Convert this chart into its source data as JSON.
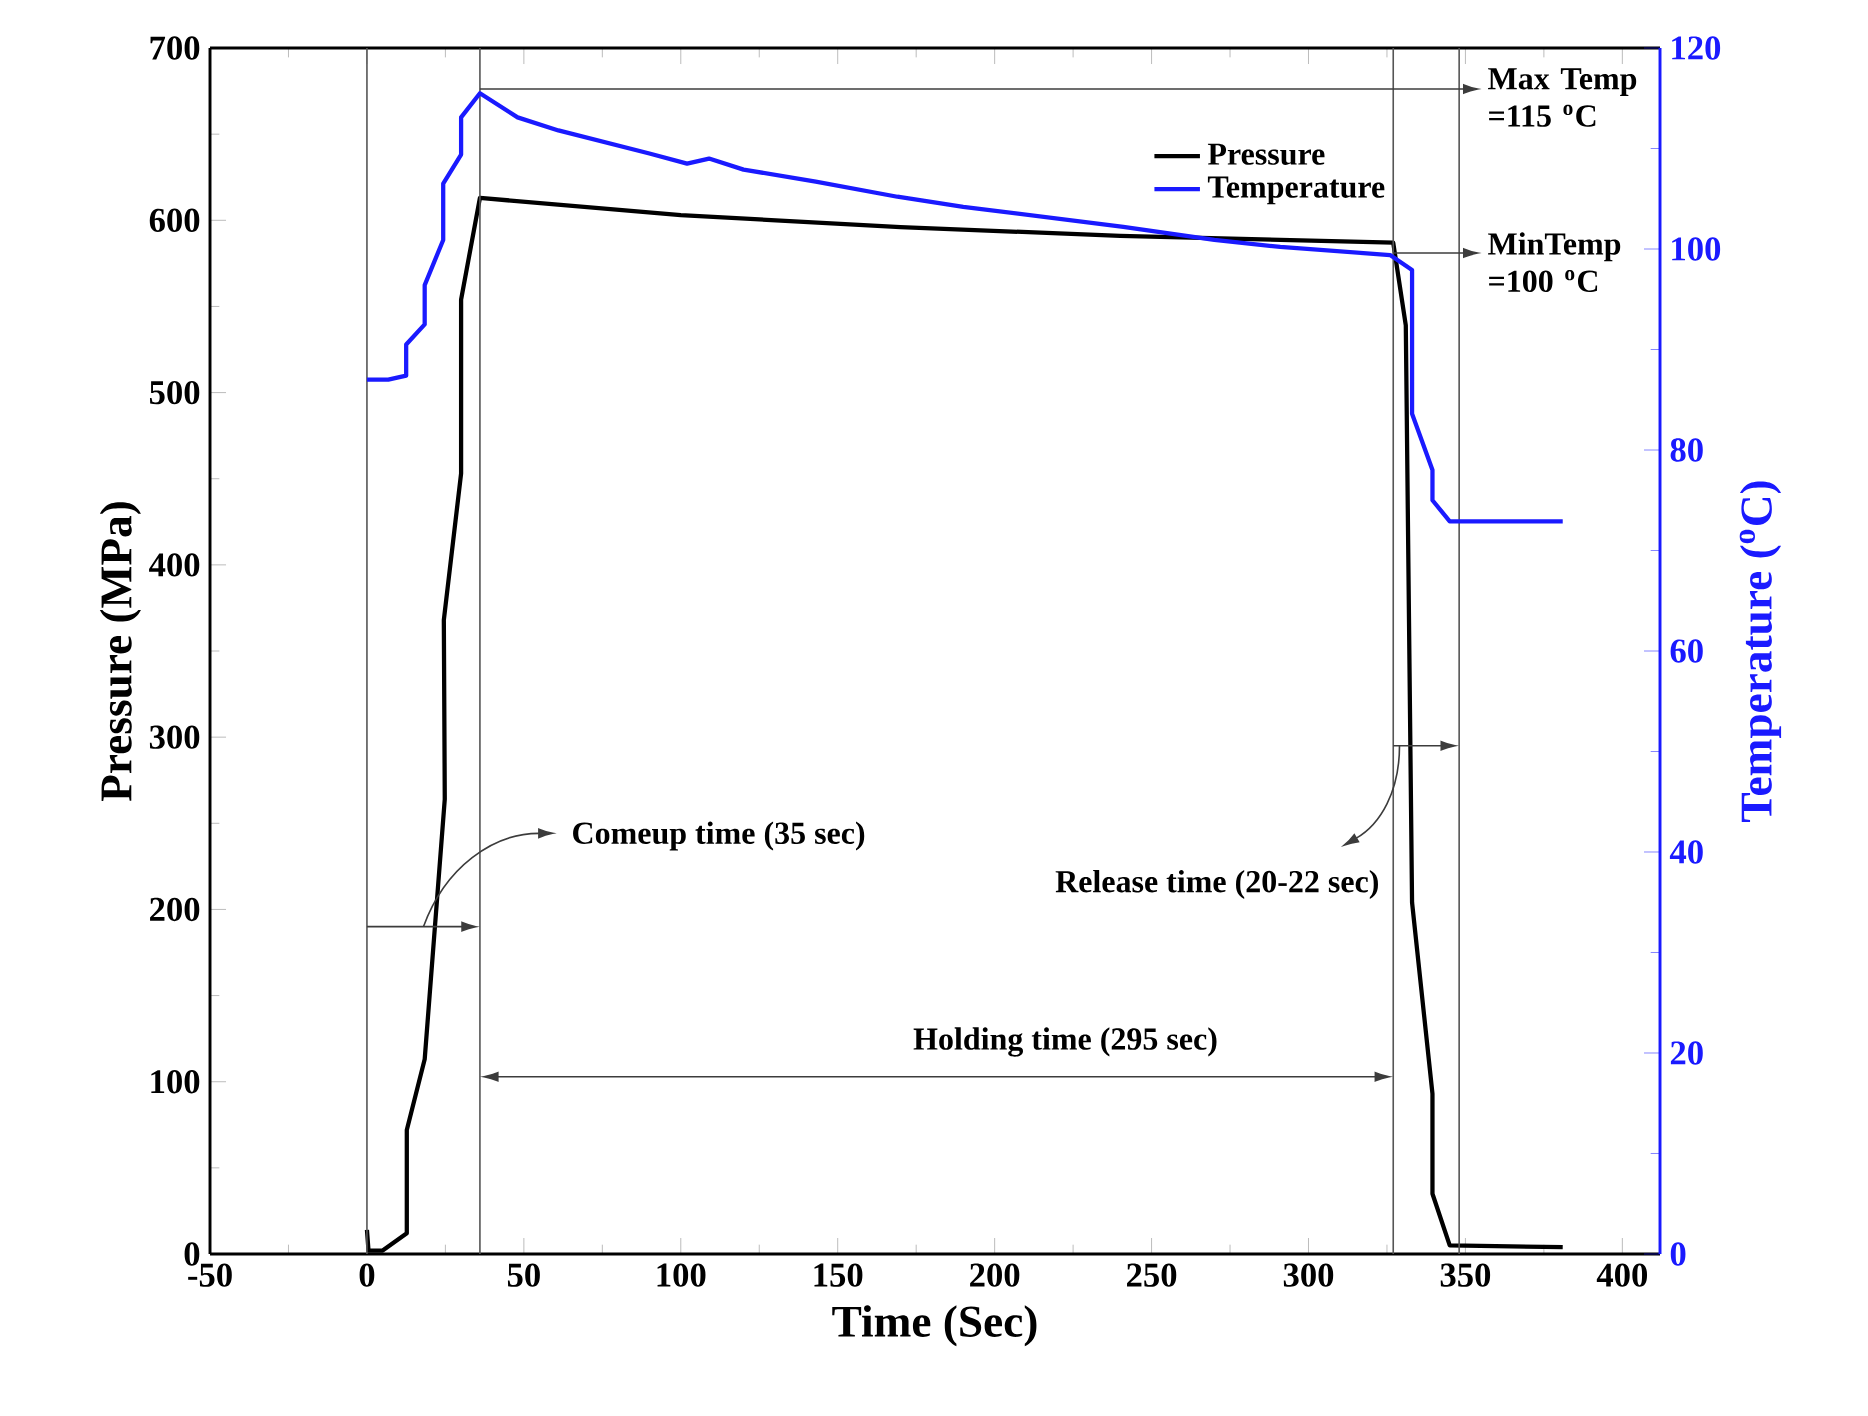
{
  "chart_data": {
    "type": "line",
    "xlabel": "Time (Sec)",
    "ylabel": "Pressure (MPa)",
    "y2label": "Temperature ($^{o}$C)",
    "xlim": [
      -50,
      412
    ],
    "xticks": [
      -50,
      0,
      50,
      100,
      150,
      200,
      250,
      300,
      350,
      400
    ],
    "ylim": [
      0,
      700
    ],
    "yticks": [
      0,
      100,
      200,
      300,
      400,
      500,
      600,
      700
    ],
    "y2lim": [
      0,
      120
    ],
    "y2ticks": [
      0,
      20,
      40,
      60,
      80,
      100,
      120
    ],
    "legend": "top right",
    "series": [
      {
        "name": "Pressure",
        "color": "#000000",
        "x": [
          0,
          0.5,
          5,
          12.7,
          12.7,
          18.4,
          24.8,
          24.5,
          30,
          30,
          36,
          100,
          170,
          240,
          327,
          331,
          333,
          339.5,
          339.5,
          345,
          381
        ],
        "values": [
          14,
          2,
          2,
          12,
          72,
          113,
          264,
          368,
          453,
          554,
          613,
          603,
          596,
          591,
          587,
          539,
          204,
          93,
          35,
          5,
          4
        ]
      },
      {
        "name": "Temperature",
        "color": "#1a1aff",
        "axis": "y2",
        "x": [
          0,
          6.8,
          12.5,
          12.5,
          18.4,
          18.4,
          24.3,
          24.3,
          30,
          30,
          36,
          48,
          61,
          90,
          102,
          109,
          120,
          143,
          169,
          190,
          241,
          270,
          291,
          326,
          333,
          333,
          339.5,
          339.5,
          345,
          381
        ],
        "values": [
          87,
          87,
          87.4,
          90.5,
          92.5,
          96.4,
          100.9,
          106.5,
          109.4,
          113.1,
          115.5,
          113.1,
          111.8,
          109.5,
          108.5,
          109,
          107.9,
          106.7,
          105.2,
          104.2,
          102.2,
          100.9,
          100.2,
          99.4,
          97.9,
          83.6,
          78,
          75,
          72.9,
          72.9
        ]
      }
    ],
    "ref_lines": [
      {
        "axis": "x",
        "value": 0,
        "color": "#555555"
      },
      {
        "axis": "x",
        "value": 36,
        "color": "#555555"
      },
      {
        "axis": "x",
        "value": 327,
        "color": "#555555"
      },
      {
        "axis": "x",
        "value": 348,
        "color": "#555555"
      }
    ],
    "annotations": [
      {
        "text": "Comeup time (35 sec)",
        "x": 18,
        "y": 190
      },
      {
        "text": "Release time (20-22 sec)",
        "x": 329,
        "y": 295
      },
      "Holding time (295 sec)",
      "Max Temp =115 $^{o}$C",
      "MinTemp =100 $^{o}$C"
    ]
  }
}
